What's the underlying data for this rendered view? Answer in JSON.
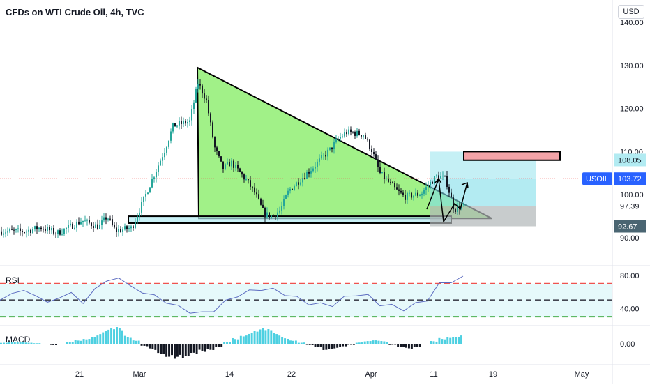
{
  "header": {
    "title": "CFDs on WTI Crude Oil, 4h, TVC",
    "currency": "USD"
  },
  "chart_data": [
    {
      "type": "candlestick",
      "symbol": "USOIL",
      "ylim": [
        88,
        142
      ],
      "y_ticks": [
        "140.00",
        "130.00",
        "120.00",
        "110.00",
        "100.00",
        "97.39",
        "90.00"
      ],
      "x_ticks": [
        "21",
        "Mar",
        "14",
        "22",
        "Apr",
        "11",
        "19",
        "May"
      ],
      "price_tags": [
        {
          "label": "108.05",
          "value": 108.05,
          "color": "#b2ebf2"
        },
        {
          "label": "USOIL",
          "value": 103.72,
          "color": "#2962ff"
        },
        {
          "label": "103.72",
          "value": 103.72,
          "color": "#2962ff"
        },
        {
          "label": "92.67",
          "value": 92.67,
          "color": "#4a6572"
        }
      ],
      "last_price": 103.72,
      "close_path": [
        [
          "2022-02-14",
          91.5
        ],
        [
          "2022-02-16",
          92.4
        ],
        [
          "2022-02-18",
          91.1
        ],
        [
          "2022-02-21",
          94.0
        ],
        [
          "2022-02-23",
          92.5
        ],
        [
          "2022-02-24",
          95.0
        ],
        [
          "2022-02-25",
          91.6
        ],
        [
          "2022-02-27",
          92.3
        ],
        [
          "2022-03-01",
          101.5
        ],
        [
          "2022-03-02",
          106.0
        ],
        [
          "2022-03-03",
          110.5
        ],
        [
          "2022-03-04",
          116.0
        ],
        [
          "2022-03-06",
          117.0
        ],
        [
          "2022-03-07",
          126.0
        ],
        [
          "2022-03-08",
          122.0
        ],
        [
          "2022-03-09",
          111.0
        ],
        [
          "2022-03-10",
          106.0
        ],
        [
          "2022-03-11",
          107.5
        ],
        [
          "2022-03-13",
          103.0
        ],
        [
          "2022-03-14",
          100.0
        ],
        [
          "2022-03-15",
          95.5
        ],
        [
          "2022-03-16",
          95.0
        ],
        [
          "2022-03-17",
          96.5
        ],
        [
          "2022-03-18",
          101.0
        ],
        [
          "2022-03-21",
          106.5
        ],
        [
          "2022-03-22",
          108.5
        ],
        [
          "2022-03-23",
          110.5
        ],
        [
          "2022-03-24",
          113.0
        ],
        [
          "2022-03-25",
          114.5
        ],
        [
          "2022-03-27",
          114.0
        ],
        [
          "2022-03-28",
          110.5
        ],
        [
          "2022-03-29",
          105.0
        ],
        [
          "2022-03-31",
          101.0
        ],
        [
          "2022-04-01",
          99.5
        ],
        [
          "2022-04-03",
          100.2
        ],
        [
          "2022-04-04",
          102.5
        ],
        [
          "2022-04-05",
          104.5
        ],
        [
          "2022-04-06",
          103.5
        ],
        [
          "2022-04-07",
          96.5
        ],
        [
          "2022-04-08",
          97.5
        ],
        [
          "2022-04-10",
          96.0
        ],
        [
          "2022-04-11",
          93.5
        ],
        [
          "2022-04-12",
          96.5
        ],
        [
          "2022-04-13",
          101.5
        ],
        [
          "2022-04-14",
          103.8
        ]
      ],
      "annotations": [
        {
          "type": "descending-triangle",
          "apex": 129.5,
          "base": 94.5
        },
        {
          "type": "support-zone",
          "range": [
            93.4,
            95.0
          ]
        },
        {
          "type": "long-position",
          "entry": 103.72,
          "target": 108.05,
          "stop": 92.67,
          "level": 97.39
        },
        {
          "type": "resistance-box",
          "range": [
            108.0,
            110.0
          ]
        }
      ]
    },
    {
      "type": "line",
      "name": "RSI",
      "ylim": [
        20,
        90
      ],
      "y_ticks": [
        "80.00",
        "40.00"
      ],
      "levels": [
        70,
        50,
        30
      ],
      "values": [
        50,
        58,
        62,
        55,
        48,
        52,
        60,
        45,
        65,
        72,
        78,
        66,
        60,
        55,
        48,
        42,
        36,
        34,
        38,
        48,
        56,
        60,
        64,
        62,
        58,
        52,
        47,
        44,
        45,
        52,
        58,
        54,
        46,
        42,
        40,
        44,
        52,
        68,
        74,
        76
      ]
    },
    {
      "type": "bar",
      "name": "MACD",
      "y_ticks": [
        "0.00"
      ],
      "values": [
        0.15,
        0.25,
        0.3,
        0.2,
        0.1,
        -0.1,
        -0.2,
        -0.1,
        0.3,
        0.6,
        0.9,
        1.3,
        1.8,
        2.2,
        2.4,
        1.2,
        0.6,
        -0.4,
        -0.9,
        -1.5,
        -1.9,
        -2.2,
        -2.4,
        -1.8,
        -1.2,
        -0.9,
        -0.5,
        0.3,
        0.9,
        1.5,
        2.0,
        2.2,
        2.1,
        1.5,
        1.0,
        0.6,
        0.2,
        -0.2,
        -0.5,
        -0.9,
        -0.8,
        -0.5,
        -0.2,
        0.2,
        0.4,
        0.5,
        0.4,
        -0.2,
        -0.6,
        -0.8,
        -0.5,
        0.0,
        0.4,
        0.9,
        1.2,
        1.3
      ]
    }
  ]
}
